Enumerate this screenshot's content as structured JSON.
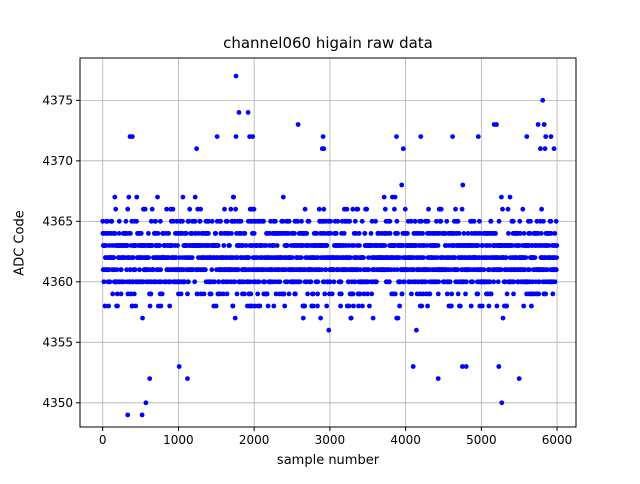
{
  "chart_data": {
    "type": "scatter",
    "title": "channel060 higain raw data",
    "xlabel": "sample number",
    "ylabel": "ADC Code",
    "xlim": [
      -300,
      6250
    ],
    "ylim": [
      4348,
      4378.5
    ],
    "xticks": [
      0,
      1000,
      2000,
      3000,
      4000,
      5000,
      6000
    ],
    "yticks": [
      4350,
      4355,
      4360,
      4365,
      4370,
      4375
    ],
    "grid": true,
    "marker_color": "#0000ff",
    "n_samples": 6000,
    "band_range": [
      4354,
      4370
    ],
    "band_center": 4362,
    "outliers": [
      {
        "x": 330,
        "y": 4349
      },
      {
        "x": 520,
        "y": 4349
      },
      {
        "x": 570,
        "y": 4350
      },
      {
        "x": 620,
        "y": 4352
      },
      {
        "x": 1120,
        "y": 4352
      },
      {
        "x": 4430,
        "y": 4352
      },
      {
        "x": 5270,
        "y": 4350
      },
      {
        "x": 5500,
        "y": 4352
      },
      {
        "x": 1760,
        "y": 4377
      },
      {
        "x": 1800,
        "y": 4374
      },
      {
        "x": 1920,
        "y": 4374
      },
      {
        "x": 5810,
        "y": 4375
      },
      {
        "x": 2580,
        "y": 4373
      },
      {
        "x": 5170,
        "y": 4373
      },
      {
        "x": 5200,
        "y": 4373
      },
      {
        "x": 5750,
        "y": 4373
      },
      {
        "x": 5830,
        "y": 4373
      },
      {
        "x": 360,
        "y": 4372
      },
      {
        "x": 390,
        "y": 4372
      },
      {
        "x": 1510,
        "y": 4372
      },
      {
        "x": 1760,
        "y": 4372
      },
      {
        "x": 1940,
        "y": 4372
      },
      {
        "x": 1980,
        "y": 4372
      },
      {
        "x": 2910,
        "y": 4372
      },
      {
        "x": 3880,
        "y": 4372
      },
      {
        "x": 4200,
        "y": 4372
      },
      {
        "x": 4620,
        "y": 4372
      },
      {
        "x": 4960,
        "y": 4372
      },
      {
        "x": 5600,
        "y": 4372
      },
      {
        "x": 5850,
        "y": 4372
      },
      {
        "x": 1240,
        "y": 4371
      },
      {
        "x": 2900,
        "y": 4371
      },
      {
        "x": 2920,
        "y": 4371
      },
      {
        "x": 3970,
        "y": 4371
      },
      {
        "x": 5780,
        "y": 4371
      },
      {
        "x": 5840,
        "y": 4371
      },
      {
        "x": 5960,
        "y": 4371
      },
      {
        "x": 5920,
        "y": 4372
      },
      {
        "x": 1010,
        "y": 4353
      },
      {
        "x": 4100,
        "y": 4353
      },
      {
        "x": 4750,
        "y": 4353
      },
      {
        "x": 4800,
        "y": 4353
      },
      {
        "x": 5230,
        "y": 4353
      }
    ]
  }
}
